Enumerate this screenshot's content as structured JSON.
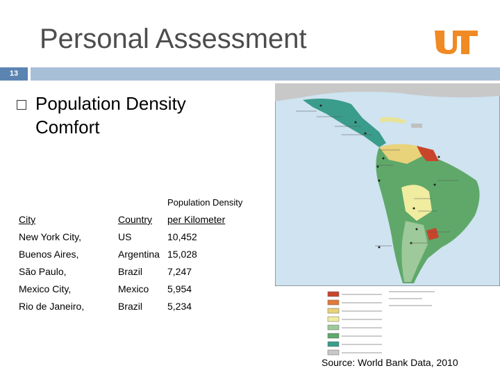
{
  "slide": {
    "title": "Personal Assessment",
    "number": "13",
    "bullet": "Population Density Comfort",
    "source": "Source: World Bank Data, 2010"
  },
  "table": {
    "super_header": "Population Density",
    "headers": [
      "City",
      "Country",
      "per Kilometer"
    ],
    "rows": [
      [
        "New York City,",
        "US",
        "10,452"
      ],
      [
        "Buenos Aires,",
        "Argentina",
        "15,028"
      ],
      [
        "São Paulo,",
        "Brazil",
        "7,247"
      ],
      [
        "Mexico City,",
        "Mexico",
        "5,954"
      ],
      [
        "Rio de Janeiro,",
        "Brazil",
        "5,234"
      ]
    ]
  },
  "colors": {
    "title": "#4d4d4d",
    "bar": "#a8bfd8",
    "number_box": "#5b84b1",
    "logo": "#f08a24"
  },
  "map": {
    "icon": "latin-america-population-density-map"
  }
}
